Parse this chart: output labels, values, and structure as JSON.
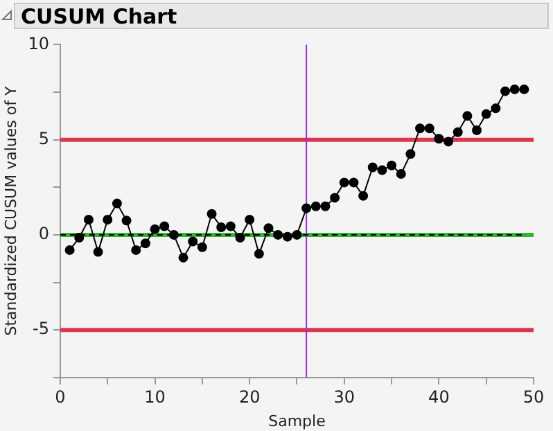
{
  "chart_data": {
    "type": "line",
    "title": "CUSUM Chart",
    "xlabel": "Sample",
    "ylabel": "Standardized CUSUM values of Y",
    "xlim": [
      0,
      50
    ],
    "xticks": [
      0,
      {
        "value": 5,
        "label": null
      },
      10,
      {
        "value": 15,
        "label": null
      },
      20,
      {
        "value": 25,
        "label": null
      },
      30,
      {
        "value": 35,
        "label": null
      },
      40,
      {
        "value": 45,
        "label": null
      },
      50
    ],
    "ylim": [
      -7.5,
      10
    ],
    "yticks": [
      {
        "value": -7.5,
        "label": null
      },
      -5,
      {
        "value": -2.5,
        "label": null
      },
      0,
      {
        "value": 2.5,
        "label": null
      },
      5,
      {
        "value": 7.5,
        "label": null
      },
      10
    ],
    "grid": false,
    "legend": false,
    "marker": "circle",
    "series": [
      {
        "color": "#000000",
        "line_style": "dashed",
        "marker": "none",
        "x": [
          0,
          49
        ],
        "values": [
          0,
          0
        ]
      },
      {
        "color": "#000000",
        "x": [
          1,
          2,
          3,
          4,
          5,
          6,
          7,
          8,
          9,
          10,
          11,
          12,
          13,
          14,
          15,
          16,
          17,
          18,
          19,
          20,
          21,
          22,
          23,
          24,
          25,
          26,
          27,
          28,
          29,
          30,
          31,
          32,
          33,
          34,
          35,
          36,
          37,
          38,
          39,
          40,
          41,
          42,
          43,
          44,
          45,
          46,
          47,
          48,
          49
        ],
        "values": [
          -0.8,
          -0.15,
          0.8,
          -0.9,
          0.8,
          1.65,
          0.75,
          -0.8,
          -0.45,
          0.3,
          0.45,
          0,
          -1.2,
          -0.35,
          -0.65,
          1.1,
          0.4,
          0.45,
          -0.15,
          0.8,
          -1.0,
          0.35,
          0,
          -0.1,
          0,
          1.4,
          1.5,
          1.5,
          1.95,
          2.75,
          2.75,
          2.05,
          3.55,
          3.4,
          3.65,
          3.2,
          4.25,
          5.6,
          5.6,
          5.05,
          4.9,
          5.4,
          6.25,
          5.5,
          6.35,
          6.65,
          7.55,
          7.65,
          7.65
        ]
      }
    ],
    "ref_lines": [
      {
        "axis": "y",
        "value": 5,
        "color": "#d9384f"
      },
      {
        "axis": "y",
        "value": -5,
        "color": "#d9384f"
      },
      {
        "axis": "y",
        "value": 0,
        "color": "#33b233"
      },
      {
        "axis": "x",
        "value": 26,
        "color": "#9b30c8"
      }
    ]
  }
}
